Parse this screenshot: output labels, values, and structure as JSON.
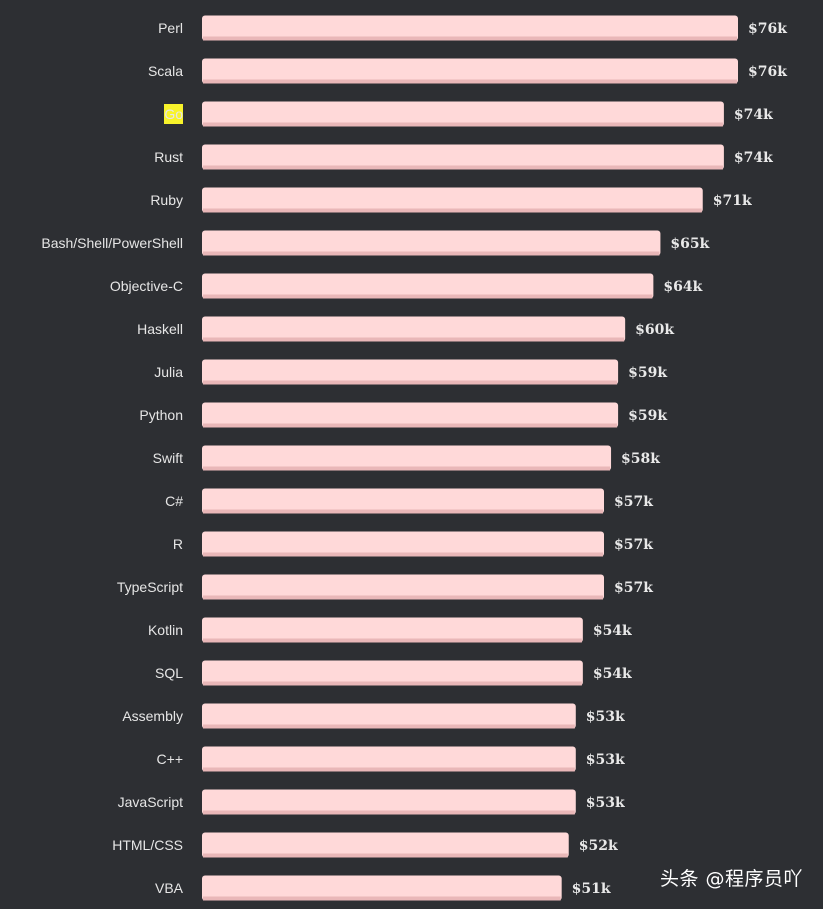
{
  "chart_data": {
    "type": "bar",
    "orientation": "horizontal",
    "categories": [
      "Perl",
      "Scala",
      "Go",
      "Rust",
      "Ruby",
      "Bash/Shell/PowerShell",
      "Objective-C",
      "Haskell",
      "Julia",
      "Python",
      "Swift",
      "C#",
      "R",
      "TypeScript",
      "Kotlin",
      "SQL",
      "Assembly",
      "C++",
      "JavaScript",
      "HTML/CSS",
      "VBA"
    ],
    "values": [
      76,
      76,
      74,
      74,
      71,
      65,
      64,
      60,
      59,
      59,
      58,
      57,
      57,
      57,
      54,
      54,
      53,
      53,
      53,
      52,
      51
    ],
    "value_labels": [
      "$76k",
      "$76k",
      "$74k",
      "$74k",
      "$71k",
      "$65k",
      "$64k",
      "$60k",
      "$59k",
      "$59k",
      "$58k",
      "$57k",
      "$57k",
      "$57k",
      "$54k",
      "$54k",
      "$53k",
      "$53k",
      "$53k",
      "$52k",
      "$51k"
    ],
    "title": "",
    "xlabel": "",
    "ylabel": "",
    "xlim": [
      0,
      76
    ],
    "grid": false,
    "highlighted_category": "Go",
    "colors": {
      "background": "#2d2f33",
      "bar": "#ffd9d9",
      "bar_shadow": "#e9b7b8",
      "label": "#e6e6e6",
      "value_label": "#e9e9e9",
      "highlight": "#f8f32b",
      "highlight_text": "#2d2f33"
    }
  },
  "watermark": "头条 @程序员吖"
}
